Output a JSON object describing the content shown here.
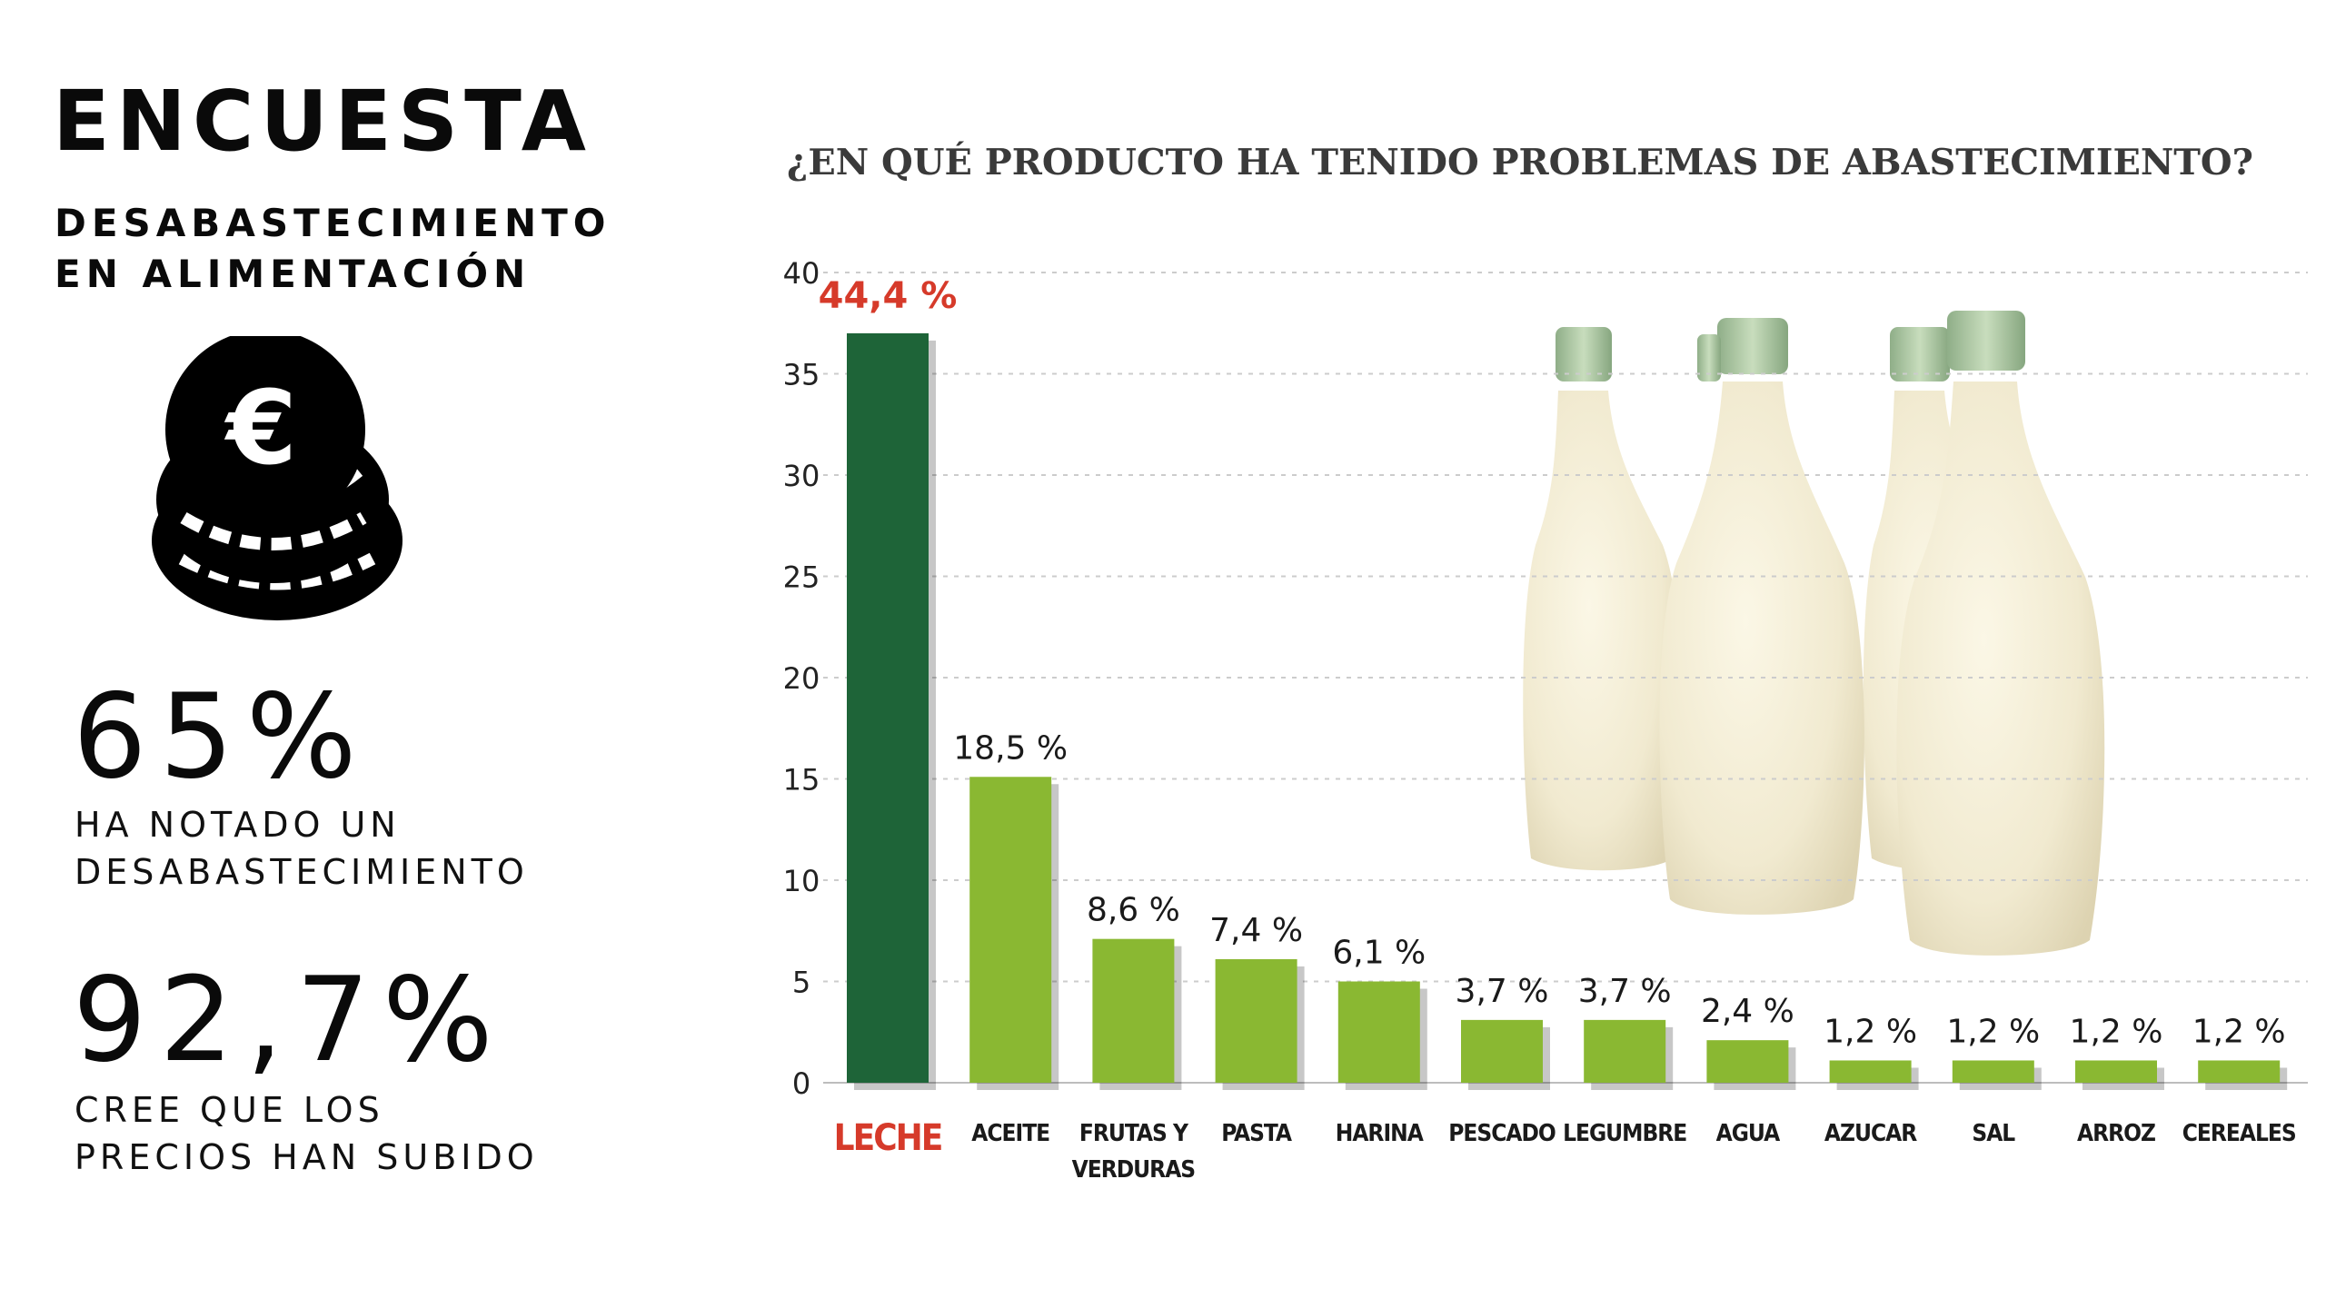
{
  "header": {
    "title": "ENCUESTA",
    "subtitle_line1": "DESABASTECIMIENTO",
    "subtitle_line2": "EN ALIMENTACIÓN"
  },
  "icon": {
    "name": "euro-coins-icon",
    "glyph": "€"
  },
  "stats": [
    {
      "value": "65%",
      "caption_line1": "HA NOTADO UN",
      "caption_line2": "DESABASTECIMIENTO"
    },
    {
      "value": "92,7%",
      "caption_line1": "CREE QUE LOS",
      "caption_line2": "PRECIOS HAN SUBIDO"
    }
  ],
  "colors": {
    "highlight_bar": "#1e6438",
    "bar": "#8ab832",
    "highlight_label": "#d63a2a",
    "text": "#111111",
    "grid": "#cccccc"
  },
  "chart_data": {
    "type": "bar",
    "title": "¿EN QUÉ PRODUCTO HA TENIDO PROBLEMAS DE ABASTECIMIENTO?",
    "xlabel": "",
    "ylabel": "",
    "ylim": [
      0,
      40
    ],
    "yticks": [
      0,
      5,
      10,
      15,
      20,
      25,
      30,
      35,
      40
    ],
    "grid": true,
    "legend": "none",
    "categories": [
      "LECHE",
      "ACEITE",
      "FRUTAS Y VERDURAS",
      "PASTA",
      "HARINA",
      "PESCADO",
      "LEGUMBRE",
      "AGUA",
      "AZUCAR",
      "SAL",
      "ARROZ",
      "CEREALES"
    ],
    "category_lines": [
      [
        "LECHE"
      ],
      [
        "ACEITE"
      ],
      [
        "FRUTAS Y",
        "VERDURAS"
      ],
      [
        "PASTA"
      ],
      [
        "HARINA"
      ],
      [
        "PESCADO"
      ],
      [
        "LEGUMBRE"
      ],
      [
        "AGUA"
      ],
      [
        "AZUCAR"
      ],
      [
        "SAL"
      ],
      [
        "ARROZ"
      ],
      [
        "CEREALES"
      ]
    ],
    "values": [
      44.4,
      18.5,
      8.6,
      7.4,
      6.1,
      3.7,
      3.7,
      2.4,
      1.2,
      1.2,
      1.2,
      1.2
    ],
    "bar_heights_drawn": [
      37,
      15.1,
      7.1,
      6.1,
      5,
      3.1,
      3.1,
      2.1,
      1.1,
      1.1,
      1.1,
      1.1
    ],
    "data_labels": [
      "44,4 %",
      "18,5 %",
      "8,6 %",
      "7,4 %",
      "6,1 %",
      "3,7 %",
      "3,7 %",
      "2,4 %",
      "1,2 %",
      "1,2 %",
      "1,2 %",
      "1,2 %"
    ],
    "highlight_index": 0,
    "background_image": "milk-bottles"
  }
}
